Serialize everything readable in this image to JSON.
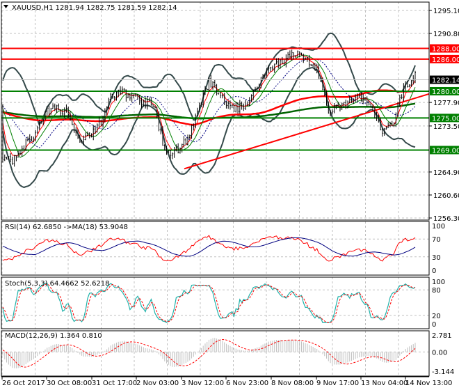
{
  "header": {
    "symbol": "XAUUSD,H1",
    "open": "1281.94",
    "high": "1282.75",
    "low": "1281.59",
    "close": "1282.14"
  },
  "colors": {
    "support": "#008000",
    "resistance": "#ff0000",
    "bands": "#34494a",
    "candles": "#000000",
    "rsi": "#ff0000",
    "rsi_ma": "#000080",
    "stoch_main": "#20b2aa",
    "stoch_signal": "#ff0000",
    "macd_hist": "#c0c0c0",
    "macd_signal": "#ff0000",
    "grid": "#c0c0c0"
  },
  "chart_data": [
    {
      "type": "line",
      "panel": "price",
      "ylim": [
        1256.3,
        1295.1
      ],
      "y_ticks": [
        "1295.10",
        "1290.80",
        "1277.90",
        "1273.50",
        "1264.90",
        "1260.60",
        "1256.30"
      ],
      "levels": [
        {
          "value": "1288.00",
          "color": "#ff0000"
        },
        {
          "value": "1286.00",
          "color": "#ff0000"
        },
        {
          "value": "1280.00",
          "color": "#008000"
        },
        {
          "value": "1275.00",
          "color": "#008000"
        },
        {
          "value": "1269.00",
          "color": "#008000"
        }
      ],
      "current_price": "1282.14",
      "trendline": {
        "from": 1265.5,
        "to": 1279.5,
        "color": "#ff0000"
      },
      "approx_close": [
        1267,
        1267,
        1270,
        1272,
        1276,
        1277,
        1276,
        1271,
        1272,
        1274,
        1279,
        1280,
        1279,
        1278,
        1277,
        1268,
        1269,
        1271,
        1276,
        1282,
        1279,
        1277,
        1277,
        1279,
        1283,
        1285,
        1286,
        1287,
        1286,
        1284,
        1276,
        1277,
        1278,
        1279,
        1277,
        1272,
        1274,
        1281,
        1283
      ],
      "grid": true
    },
    {
      "type": "line",
      "panel": "rsi",
      "label": "RSI(14) 62.6850  ->MA(18) 53.9048",
      "ylim": [
        0,
        100
      ],
      "y_ticks": [
        "100",
        "70",
        "30",
        "0"
      ]
    },
    {
      "type": "line",
      "panel": "stoch",
      "label": "Stoch(5,3,3) 64.4662 52.6218",
      "ylim": [
        0,
        100
      ],
      "y_ticks": [
        "100",
        "80",
        "20",
        "0"
      ]
    },
    {
      "type": "bar",
      "panel": "macd",
      "label": "MACD(12,26,9) 1.364 0.810",
      "ylim": [
        -3.144,
        2.781
      ],
      "y_ticks": [
        "2.781",
        "0.00",
        "-3.144"
      ]
    }
  ],
  "x_axis": {
    "labels": [
      "26 Oct 2017",
      "30 Oct 08:00",
      "31 Oct 17:00",
      "2 Nov 03:00",
      "3 Nov 12:00",
      "6 Nov 23:00",
      "8 Nov 08:00",
      "9 Nov 17:00",
      "13 Nov 04:00",
      "14 Nov 13:00"
    ]
  }
}
